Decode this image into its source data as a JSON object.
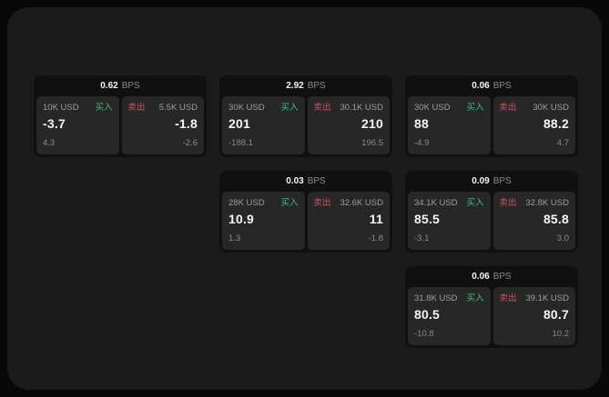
{
  "colors": {
    "buy": "#3fbd7e",
    "sell": "#cd5563",
    "card_bg": "#101010",
    "subcard_bg": "#272727",
    "window_bg": "#1b1b1b",
    "primary_text": "#f5f5f5",
    "muted_text": "#9e9e9e"
  },
  "cards": [
    {
      "bps": "0.62",
      "bps_unit": "BPS",
      "buy": {
        "size": "10K USD",
        "side_label": "买入",
        "price": "-3.7",
        "secondary": "4.3"
      },
      "sell": {
        "side_label": "卖出",
        "size": "5.5K USD",
        "price": "-1.8",
        "secondary": "-2.6"
      }
    },
    {
      "bps": "2.92",
      "bps_unit": "BPS",
      "buy": {
        "size": "30K USD",
        "side_label": "买入",
        "price": "201",
        "secondary": "-188.1"
      },
      "sell": {
        "side_label": "卖出",
        "size": "30.1K USD",
        "price": "210",
        "secondary": "196.5"
      }
    },
    {
      "bps": "0.06",
      "bps_unit": "BPS",
      "buy": {
        "size": "30K USD",
        "side_label": "买入",
        "price": "88",
        "secondary": "-4.9"
      },
      "sell": {
        "side_label": "卖出",
        "size": "30K USD",
        "price": "88.2",
        "secondary": "4.7"
      }
    },
    {
      "bps": "0.03",
      "bps_unit": "BPS",
      "buy": {
        "size": "28K USD",
        "side_label": "买入",
        "price": "10.9",
        "secondary": "1.3"
      },
      "sell": {
        "side_label": "卖出",
        "size": "32.6K USD",
        "price": "11",
        "secondary": "-1.8"
      }
    },
    {
      "bps": "0.09",
      "bps_unit": "BPS",
      "buy": {
        "size": "34.1K USD",
        "side_label": "买入",
        "price": "85.5",
        "secondary": "-3.1"
      },
      "sell": {
        "side_label": "卖出",
        "size": "32.8K USD",
        "price": "85.8",
        "secondary": "3.0"
      }
    },
    {
      "bps": "0.06",
      "bps_unit": "BPS",
      "buy": {
        "size": "31.8K USD",
        "side_label": "买入",
        "price": "80.5",
        "secondary": "-10.8"
      },
      "sell": {
        "side_label": "卖出",
        "size": "39.1K USD",
        "price": "80.7",
        "secondary": "10.2"
      }
    }
  ]
}
